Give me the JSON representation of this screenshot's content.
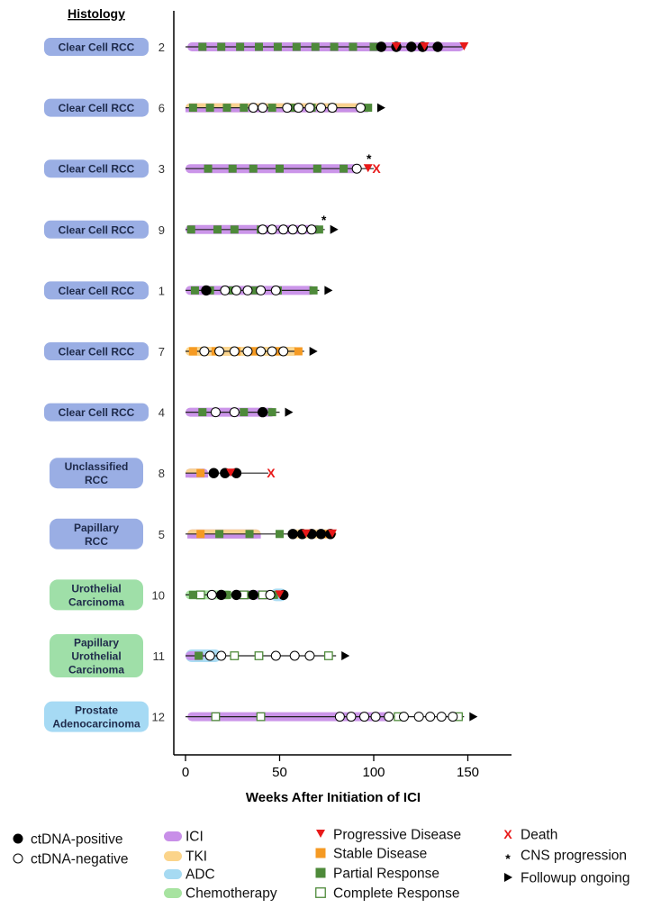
{
  "chart_data": {
    "type": "swimmer",
    "title": "",
    "column_header": "Histology",
    "xlabel": "Weeks After Initiation of ICI",
    "ylabel": "",
    "xlim": [
      -6,
      175
    ],
    "xticks": [
      0,
      50,
      100,
      150
    ],
    "grid": false,
    "colors": {
      "ICI": "#c88fe8",
      "TKI": "#fbd48a",
      "ADC": "#a6daf2",
      "Chemotherapy": "#a7e3a0",
      "pd": "#e81919",
      "sd": "#f59a23",
      "pr": "#4e8a3a",
      "death": "#e81919",
      "rcc_label": "#9aaee4",
      "uro_label": "#9fdfa8",
      "prostate_label": "#a6daf4"
    },
    "patients": [
      {
        "id": "2",
        "histology": [
          "Clear Cell RCC"
        ],
        "label_color": "rcc_label",
        "therapy": [
          {
            "type": "ICI",
            "start": 1,
            "end": 148
          }
        ],
        "followup_end": 148,
        "ongoing": false,
        "death": false,
        "ctdna_pos": [
          104,
          112,
          120,
          126,
          134
        ],
        "ctdna_neg": [],
        "pr": [
          9,
          19,
          29,
          39,
          49,
          59,
          69,
          79,
          89,
          100
        ],
        "sd": [],
        "cr": [],
        "pd": [
          112,
          127,
          148
        ],
        "cns": []
      },
      {
        "id": "6",
        "histology": [
          "Clear Cell RCC"
        ],
        "label_color": "rcc_label",
        "therapy": [
          {
            "type": "ICI",
            "start": 0,
            "end": 97
          },
          {
            "type": "TKI",
            "start": 0,
            "end": 93
          }
        ],
        "followup_end": 99,
        "ongoing": true,
        "death": false,
        "ctdna_pos": [],
        "ctdna_neg": [
          36,
          41,
          54,
          60,
          66,
          72,
          78,
          93
        ],
        "pr": [
          4,
          13,
          22,
          31,
          46,
          57,
          67,
          78,
          97
        ],
        "sd": [],
        "cr": [],
        "pd": [],
        "cns": []
      },
      {
        "id": "3",
        "histology": [
          "Clear Cell RCC"
        ],
        "label_color": "rcc_label",
        "therapy": [
          {
            "type": "ICI",
            "start": 0,
            "end": 93
          }
        ],
        "followup_end": 100,
        "ongoing": false,
        "death": true,
        "death_week": 100,
        "ctdna_pos": [],
        "ctdna_neg": [
          91
        ],
        "pr": [
          12,
          25,
          36,
          50,
          70,
          84
        ],
        "sd": [],
        "cr": [],
        "pd": [
          97
        ],
        "cns": [
          97
        ]
      },
      {
        "id": "9",
        "histology": [
          "Clear Cell RCC"
        ],
        "label_color": "rcc_label",
        "therapy": [
          {
            "type": "ICI",
            "start": 0,
            "end": 72
          }
        ],
        "followup_end": 74,
        "ongoing": true,
        "death": false,
        "ctdna_pos": [],
        "ctdna_neg": [
          41,
          46,
          52,
          57,
          62,
          67
        ],
        "pr": [
          3,
          17,
          26,
          40,
          71
        ],
        "sd": [],
        "cr": [],
        "pd": [],
        "cns": [
          73
        ]
      },
      {
        "id": "1",
        "histology": [
          "Clear Cell RCC"
        ],
        "label_color": "rcc_label",
        "therapy": [
          {
            "type": "ICI",
            "start": 0,
            "end": 69
          }
        ],
        "followup_end": 71,
        "ongoing": true,
        "death": false,
        "ctdna_pos": [
          11
        ],
        "ctdna_neg": [
          21,
          27,
          33,
          40,
          48
        ],
        "pr": [
          5,
          13,
          25,
          37,
          49,
          68
        ],
        "sd": [],
        "cr": [],
        "pd": [],
        "cns": []
      },
      {
        "id": "7",
        "histology": [
          "Clear Cell RCC"
        ],
        "label_color": "rcc_label",
        "therapy": [
          {
            "type": "TKI",
            "start": 0,
            "end": 60
          }
        ],
        "followup_end": 63,
        "ongoing": true,
        "death": false,
        "ctdna_pos": [],
        "ctdna_neg": [
          10,
          18,
          26,
          33,
          40,
          46,
          52
        ],
        "pr": [],
        "sd": [
          4,
          16,
          27,
          37,
          49,
          60
        ],
        "cr": [],
        "pd": [],
        "cns": []
      },
      {
        "id": "4",
        "histology": [
          "Clear Cell RCC"
        ],
        "label_color": "rcc_label",
        "therapy": [
          {
            "type": "ICI",
            "start": 0,
            "end": 48
          }
        ],
        "followup_end": 50,
        "ongoing": true,
        "death": false,
        "ctdna_pos": [
          41
        ],
        "ctdna_neg": [
          16,
          26
        ],
        "pr": [
          9,
          31,
          46
        ],
        "sd": [],
        "cr": [],
        "pd": [],
        "cns": []
      },
      {
        "id": "8",
        "histology": [
          "Unclassified",
          "RCC"
        ],
        "label_color": "rcc_label",
        "therapy": [
          {
            "type": "ICI",
            "start": 0,
            "end": 12
          },
          {
            "type": "TKI",
            "start": 0,
            "end": 10
          }
        ],
        "followup_end": 44,
        "ongoing": false,
        "death": true,
        "death_week": 44,
        "ctdna_pos": [
          15,
          21,
          27
        ],
        "ctdna_neg": [],
        "pr": [],
        "sd": [
          8
        ],
        "cr": [],
        "pd": [
          24
        ],
        "cns": []
      },
      {
        "id": "5",
        "histology": [
          "Papillary",
          "RCC"
        ],
        "label_color": "rcc_label",
        "therapy": [
          {
            "type": "ICI",
            "start": 1,
            "end": 40
          },
          {
            "type": "TKI",
            "start": 1,
            "end": 40
          },
          {
            "type": "TKI",
            "start": 55,
            "end": 80
          }
        ],
        "followup_end": 80,
        "ongoing": false,
        "death": false,
        "ctdna_pos": [
          57,
          62,
          67,
          72,
          77
        ],
        "ctdna_neg": [],
        "pr": [
          18,
          34,
          50
        ],
        "sd": [
          8,
          75
        ],
        "cr": [],
        "pd": [
          64,
          78
        ],
        "cns": []
      },
      {
        "id": "10",
        "histology": [
          "Urothelial",
          "Carcinoma"
        ],
        "label_color": "uro_label",
        "therapy": [
          {
            "type": "Chemotherapy",
            "start": 0,
            "end": 25
          },
          {
            "type": "ICI",
            "start": 25,
            "end": 54
          },
          {
            "type": "ADC",
            "start": 45,
            "end": 54
          }
        ],
        "followup_end": 54,
        "ongoing": false,
        "death": false,
        "ctdna_pos": [
          19,
          27,
          36,
          52
        ],
        "ctdna_neg": [
          14,
          45
        ],
        "pr": [
          4,
          22,
          35,
          47
        ],
        "sd": [],
        "cr": [
          8,
          31,
          41
        ],
        "pd": [
          50
        ],
        "cns": []
      },
      {
        "id": "11",
        "histology": [
          "Papillary",
          "Urothelial",
          "Carcinoma"
        ],
        "label_color": "uro_label",
        "therapy": [
          {
            "type": "ADC",
            "start": 0,
            "end": 19
          },
          {
            "type": "ICI",
            "start": 0,
            "end": 10
          }
        ],
        "followup_end": 80,
        "ongoing": true,
        "death": false,
        "ctdna_pos": [],
        "ctdna_neg": [
          13,
          19,
          48,
          58,
          66
        ],
        "pr": [
          7
        ],
        "sd": [],
        "cr": [
          26,
          39,
          76
        ],
        "pd": [],
        "cns": []
      },
      {
        "id": "12",
        "histology": [
          "Prostate",
          "Adenocarcinoma"
        ],
        "label_color": "prostate_label",
        "therapy": [
          {
            "type": "ICI",
            "start": 1,
            "end": 110
          }
        ],
        "followup_end": 148,
        "ongoing": true,
        "death": false,
        "ctdna_pos": [],
        "ctdna_neg": [
          82,
          88,
          95,
          101,
          108,
          116,
          124,
          130,
          136,
          142
        ],
        "pr": [],
        "sd": [],
        "cr": [
          16,
          40,
          113,
          145
        ],
        "pd": [],
        "cns": []
      }
    ],
    "legend": [
      {
        "symbol": "ctdna-pos",
        "label": "ctDNA-positive"
      },
      {
        "symbol": "ctdna-neg",
        "label": "ctDNA-negative"
      },
      {
        "symbol": "therapy",
        "therapy": "ICI",
        "label": "ICI"
      },
      {
        "symbol": "therapy",
        "therapy": "TKI",
        "label": "TKI"
      },
      {
        "symbol": "therapy",
        "therapy": "ADC",
        "label": "ADC"
      },
      {
        "symbol": "therapy",
        "therapy": "Chemotherapy",
        "label": "Chemotherapy"
      },
      {
        "symbol": "pd",
        "label": "Progressive Disease"
      },
      {
        "symbol": "sd",
        "label": "Stable Disease"
      },
      {
        "symbol": "pr",
        "label": "Partial Response"
      },
      {
        "symbol": "cr",
        "label": "Complete Response"
      },
      {
        "symbol": "death",
        "label": "Death"
      },
      {
        "symbol": "cns",
        "label": "CNS progression"
      },
      {
        "symbol": "ongoing",
        "label": "Followup ongoing"
      }
    ]
  }
}
